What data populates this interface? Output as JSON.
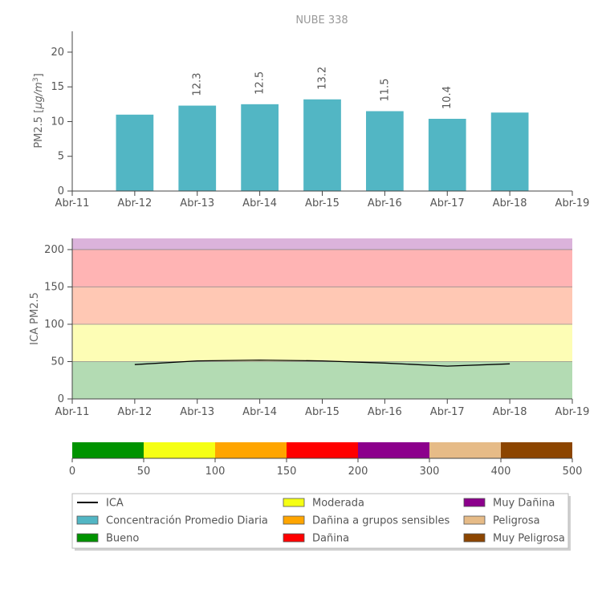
{
  "chart_data": [
    {
      "type": "bar",
      "title": "NUBE 338",
      "ylabel": "PM2.5 [µg/m³]",
      "ylabel_parts": {
        "base": "PM2.5 [",
        "unit": "µg/m",
        "exp": "3",
        "close": "]"
      },
      "categories": [
        "Abr-12",
        "Abr-13",
        "Abr-14",
        "Abr-15",
        "Abr-16",
        "Abr-17",
        "Abr-18"
      ],
      "x_ticks": [
        "Abr-11",
        "Abr-12",
        "Abr-13",
        "Abr-14",
        "Abr-15",
        "Abr-16",
        "Abr-17",
        "Abr-18",
        "Abr-19"
      ],
      "values": [
        11.0,
        12.3,
        12.5,
        13.2,
        11.5,
        10.4,
        11.3
      ],
      "data_labels": [
        "",
        "12.3",
        "12.5",
        "13.2",
        "11.5",
        "10.4",
        ""
      ],
      "ylim": [
        0,
        23
      ],
      "y_ticks": [
        0,
        5,
        10,
        15,
        20
      ],
      "color": "#52b6c4"
    },
    {
      "type": "line",
      "ylabel": "ICA PM2.5",
      "x_ticks": [
        "Abr-11",
        "Abr-12",
        "Abr-13",
        "Abr-14",
        "Abr-15",
        "Abr-16",
        "Abr-17",
        "Abr-18",
        "Abr-19"
      ],
      "x": [
        "Abr-12",
        "Abr-13",
        "Abr-14",
        "Abr-15",
        "Abr-16",
        "Abr-17",
        "Abr-18"
      ],
      "values": [
        46,
        51,
        52,
        51,
        48,
        44,
        47
      ],
      "ylim": [
        0,
        215
      ],
      "y_ticks": [
        0,
        50,
        100,
        150,
        200
      ],
      "line_color": "#000000",
      "bands": [
        {
          "from": 0,
          "to": 50,
          "color": "#b3dbb3"
        },
        {
          "from": 50,
          "to": 100,
          "color": "#fdfdb5"
        },
        {
          "from": 100,
          "to": 150,
          "color": "#ffc8b4"
        },
        {
          "from": 150,
          "to": 200,
          "color": "#ffb4b4"
        },
        {
          "from": 200,
          "to": 300,
          "color": "#dbb3db"
        }
      ]
    },
    {
      "type": "colorscale",
      "segments": [
        {
          "from": 0,
          "to": 50,
          "color": "#009300"
        },
        {
          "from": 50,
          "to": 100,
          "color": "#f5ff14"
        },
        {
          "from": 100,
          "to": 150,
          "color": "#ffa500"
        },
        {
          "from": 150,
          "to": 200,
          "color": "#ff0000"
        },
        {
          "from": 200,
          "to": 300,
          "color": "#8c008c"
        },
        {
          "from": 300,
          "to": 400,
          "color": "#e6bb87"
        },
        {
          "from": 400,
          "to": 500,
          "color": "#8c4500"
        }
      ],
      "tick_labels": [
        "0",
        "50",
        "100",
        "150",
        "200",
        "300",
        "400",
        "500"
      ]
    }
  ],
  "legend": {
    "columns": [
      [
        {
          "label": "ICA",
          "kind": "line",
          "color": "#000000"
        },
        {
          "label": "Concentración Promedio Diaria",
          "kind": "box",
          "color": "#52b6c4"
        },
        {
          "label": "Bueno",
          "kind": "box",
          "color": "#009300"
        }
      ],
      [
        {
          "label": "Moderada",
          "kind": "box",
          "color": "#f5ff14"
        },
        {
          "label": "Dañina a grupos sensibles",
          "kind": "box",
          "color": "#ffa500"
        },
        {
          "label": "Dañina",
          "kind": "box",
          "color": "#ff0000"
        }
      ],
      [
        {
          "label": "Muy Dañina",
          "kind": "box",
          "color": "#8c008c"
        },
        {
          "label": "Peligrosa",
          "kind": "box",
          "color": "#e6bb87"
        },
        {
          "label": "Muy Peligrosa",
          "kind": "box",
          "color": "#8c4500"
        }
      ]
    ]
  }
}
